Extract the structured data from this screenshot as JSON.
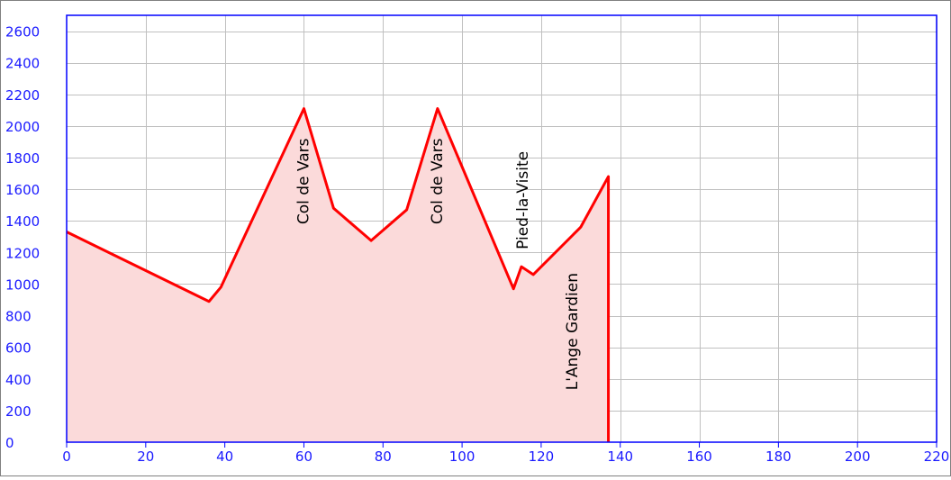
{
  "chart_data": {
    "type": "area",
    "title": "",
    "xlabel": "",
    "ylabel": "",
    "xlim": [
      0,
      220
    ],
    "ylim": [
      0,
      2700
    ],
    "x_ticks": [
      0,
      20,
      40,
      60,
      80,
      100,
      120,
      140,
      160,
      180,
      200,
      220
    ],
    "y_ticks": [
      0,
      200,
      400,
      600,
      800,
      1000,
      1200,
      1400,
      1600,
      1800,
      2000,
      2200,
      2400,
      2600
    ],
    "grid": true,
    "series": [
      {
        "points": [
          [
            0,
            1330
          ],
          [
            36,
            890
          ],
          [
            39,
            980
          ],
          [
            60,
            2110
          ],
          [
            67.5,
            1480
          ],
          [
            77,
            1275
          ],
          [
            86,
            1470
          ],
          [
            93.8,
            2110
          ],
          [
            113,
            970
          ],
          [
            115,
            1110
          ],
          [
            118,
            1060
          ],
          [
            130,
            1360
          ],
          [
            137,
            1680
          ],
          [
            137,
            0
          ]
        ]
      }
    ],
    "annotations": [
      {
        "text": "Col de Vars",
        "x": 60,
        "y": 1650
      },
      {
        "text": "Col de Vars",
        "x": 93.8,
        "y": 1650
      },
      {
        "text": "Pied-la-Visite",
        "x": 115.5,
        "y": 1530
      },
      {
        "text": "L'Ange Gardien",
        "x": 128,
        "y": 700
      }
    ],
    "colors": {
      "line": "#ff0000",
      "fill": "#fbdada",
      "axis": "#0000ff",
      "tick_text": "#1a1aff",
      "grid": "#c0c0c0",
      "annotation": "#000000"
    }
  }
}
